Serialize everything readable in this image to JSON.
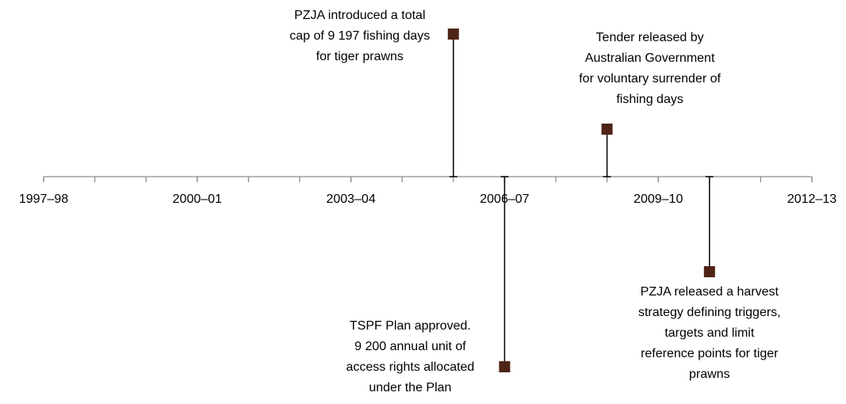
{
  "chart_data": {
    "type": "timeline",
    "xlim": [
      1997,
      2012
    ],
    "xticks": [
      {
        "value": 1997,
        "label": "1997–98"
      },
      {
        "value": 2000,
        "label": "2000–01"
      },
      {
        "value": 2003,
        "label": "2003–04"
      },
      {
        "value": 2006,
        "label": "2006–07"
      },
      {
        "value": 2009,
        "label": "2009–10"
      },
      {
        "value": 2012,
        "label": "2012–13"
      }
    ],
    "ylim": [
      -4.5,
      3.5
    ],
    "color": "#4f2316",
    "events": [
      {
        "x": 2005,
        "value": 3,
        "text": [
          "PZJA introduced a total",
          "cap of 9 197 fishing days",
          "for tiger prawns"
        ]
      },
      {
        "x": 2006,
        "value": -4,
        "text": [
          "TSPF Plan approved.",
          "9 200 annual unit of",
          "access rights allocated",
          "under the Plan"
        ]
      },
      {
        "x": 2008,
        "value": 1,
        "text": [
          "Tender released by",
          "Australian Government",
          "for voluntary surrender of",
          "fishing days"
        ]
      },
      {
        "x": 2010,
        "value": -2,
        "text": [
          "PZJA released a harvest",
          "strategy defining triggers,",
          "targets and limit",
          "reference points for tiger",
          "prawns"
        ]
      }
    ]
  }
}
